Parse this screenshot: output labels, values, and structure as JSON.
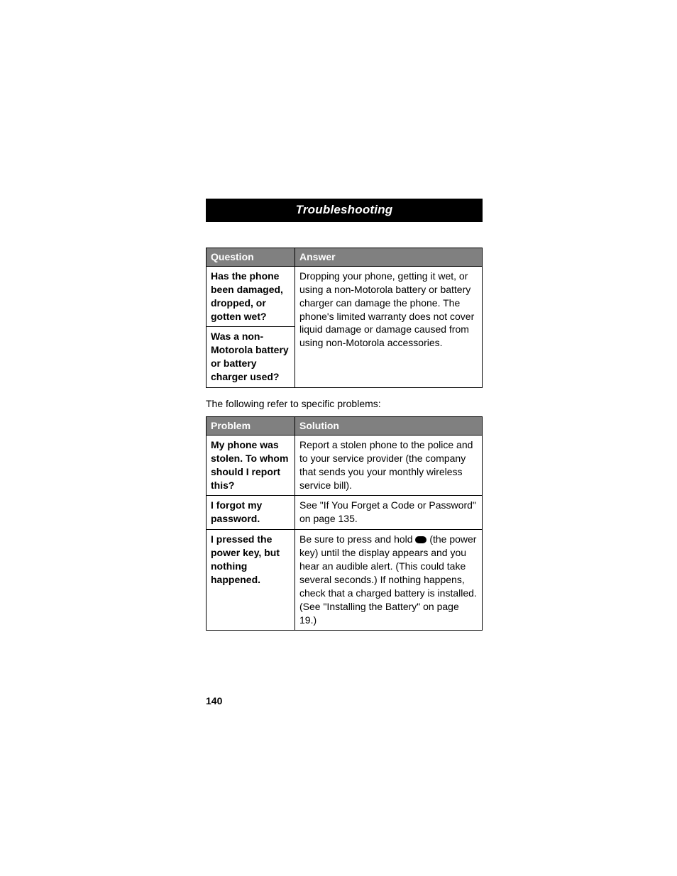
{
  "title": "Troubleshooting",
  "table1": {
    "headers": {
      "q": "Question",
      "a": "Answer"
    },
    "q1": "Has the phone been damaged, dropped, or gotten wet?",
    "q2": "Was a non-Motorola battery or battery charger used?",
    "a1": "Dropping your phone, getting it wet, or using a non-Motorola battery or battery charger can damage the phone. The phone's limited warranty does not cover liquid damage or damage caused from using non-Motorola accessories."
  },
  "note": "The following refer to specific problems:",
  "table2": {
    "headers": {
      "p": "Problem",
      "s": "Solution"
    },
    "rows": [
      {
        "p": "My phone was stolen. To whom should I report this?",
        "s": "Report a stolen phone to the police and to your service provider (the company that sends you your monthly wireless service bill)."
      },
      {
        "p": "I forgot my password.",
        "s": "See \"If You Forget a Code or Password\" on page 135."
      },
      {
        "p": "I pressed the power key, but nothing happened.",
        "s_pre": "Be sure to press and hold ",
        "s_post": " (the power key) until the display appears and you hear an audible alert. (This could take several seconds.) If nothing happens, check that a charged battery is installed. (See \"Installing the Battery\" on page 19.)"
      }
    ]
  },
  "page_number": "140",
  "colors": {
    "header_bg": "#808080",
    "title_bg": "#000000",
    "border": "#000000",
    "text": "#000000"
  }
}
